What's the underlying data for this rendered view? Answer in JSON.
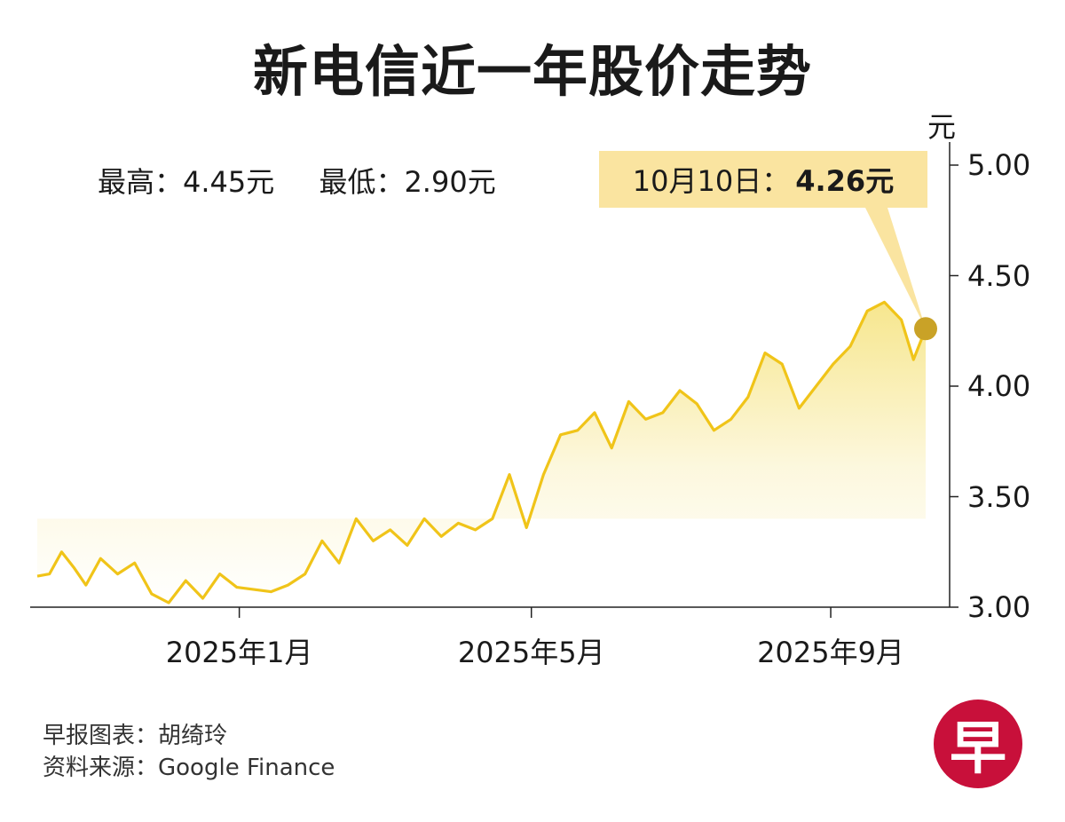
{
  "title": "新电信近一年股价走势",
  "stats": {
    "high": "最高：4.45元",
    "low": "最低：2.90元"
  },
  "callout": {
    "date": "10月10日：",
    "value": "4.26元"
  },
  "credits": {
    "chart_by": "早报图表：胡绮玲",
    "source": "资料来源：Google Finance"
  },
  "logo": {
    "text": "早",
    "color": "#c8103a"
  },
  "colors": {
    "line": "#f0c419",
    "fill": "#f5e27a",
    "marker": "#c9a227",
    "callout_bg": "#fae4a0"
  },
  "chart_data": {
    "type": "area",
    "y_unit": "元",
    "ylim": [
      3.0,
      5.0
    ],
    "yticks": [
      "5.00",
      "4.50",
      "4.00",
      "3.50",
      "3.00"
    ],
    "xticks": [
      "2025年1月",
      "2025年5月",
      "2025年9月"
    ],
    "grid": false,
    "series": [
      {
        "x": [
          "2024-10-10",
          "2024-10-15",
          "2024-10-20",
          "2024-10-25",
          "2024-10-30",
          "2024-11-05",
          "2024-11-12",
          "2024-11-19",
          "2024-11-26",
          "2024-12-03",
          "2024-12-10",
          "2024-12-17",
          "2024-12-24",
          "2024-12-31",
          "2025-01-07",
          "2025-01-14",
          "2025-01-21",
          "2025-01-28",
          "2025-02-04",
          "2025-02-11",
          "2025-02-18",
          "2025-02-25",
          "2025-03-04",
          "2025-03-11",
          "2025-03-18",
          "2025-03-25",
          "2025-04-01",
          "2025-04-08",
          "2025-04-15",
          "2025-04-22",
          "2025-04-29",
          "2025-05-06",
          "2025-05-13",
          "2025-05-20",
          "2025-05-27",
          "2025-06-03",
          "2025-06-10",
          "2025-06-17",
          "2025-06-24",
          "2025-07-01",
          "2025-07-08",
          "2025-07-15",
          "2025-07-22",
          "2025-07-29",
          "2025-08-05",
          "2025-08-12",
          "2025-08-19",
          "2025-08-26",
          "2025-09-02",
          "2025-09-09",
          "2025-09-16",
          "2025-09-23",
          "2025-09-30",
          "2025-10-05",
          "2025-10-10"
        ],
        "y": [
          3.14,
          3.15,
          3.25,
          3.18,
          3.1,
          3.22,
          3.15,
          3.2,
          3.06,
          3.02,
          3.12,
          3.04,
          3.15,
          3.09,
          3.08,
          3.07,
          3.1,
          3.15,
          3.3,
          3.2,
          3.4,
          3.3,
          3.35,
          3.28,
          3.4,
          3.32,
          3.38,
          3.35,
          3.4,
          3.6,
          3.36,
          3.6,
          3.78,
          3.8,
          3.88,
          3.72,
          3.93,
          3.85,
          3.88,
          3.98,
          3.92,
          3.8,
          3.85,
          3.95,
          4.15,
          4.1,
          3.9,
          4.0,
          4.1,
          4.18,
          4.34,
          4.38,
          4.3,
          4.12,
          4.26
        ]
      }
    ]
  }
}
